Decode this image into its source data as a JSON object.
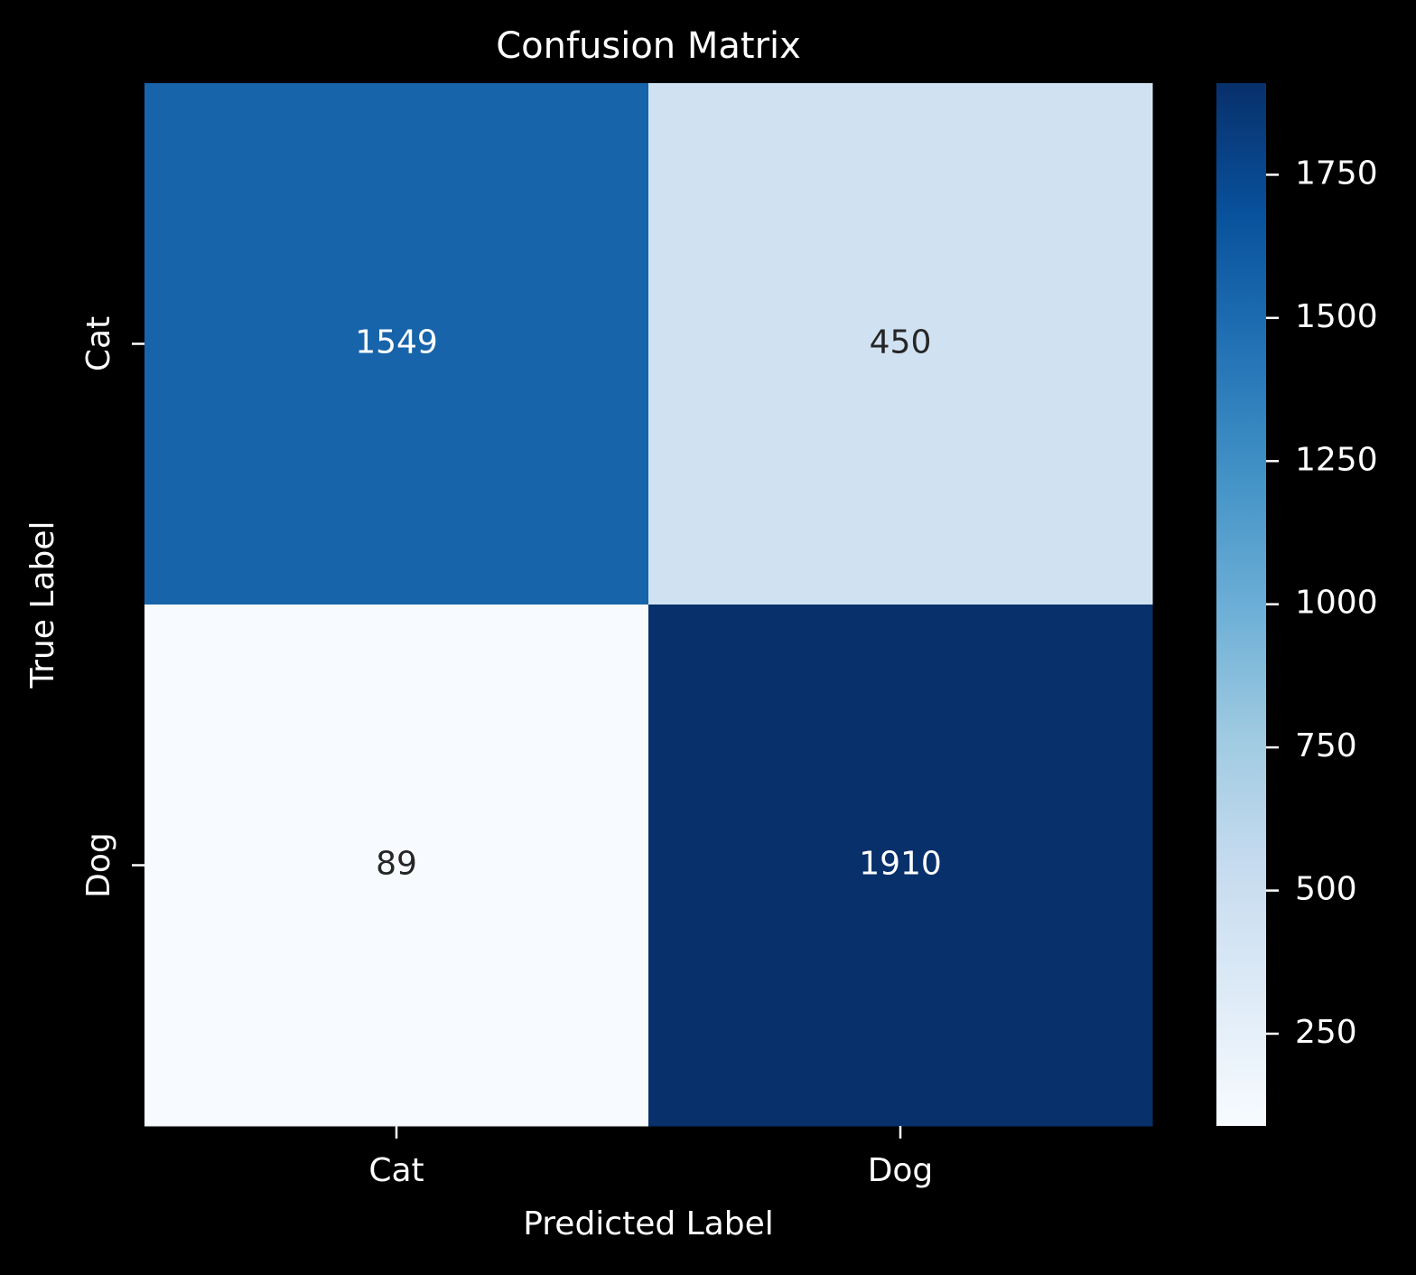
{
  "chart_data": {
    "type": "heatmap",
    "title": "Confusion Matrix",
    "xlabel": "Predicted Label",
    "ylabel": "True Label",
    "x_categories": [
      "Cat",
      "Dog"
    ],
    "y_categories": [
      "Cat",
      "Dog"
    ],
    "values": [
      [
        1549,
        450
      ],
      [
        89,
        1910
      ]
    ],
    "colormap": "Blues",
    "color_range": [
      89,
      1910
    ],
    "colorbar_ticks": [
      250,
      500,
      750,
      1000,
      1250,
      1500,
      1750
    ],
    "grid": false,
    "legend": "colorbar-right"
  },
  "colors": {
    "background": "#000000",
    "foreground": "#ffffff",
    "annotation_dark": "#262626",
    "annotation_light": "#ffffff"
  }
}
